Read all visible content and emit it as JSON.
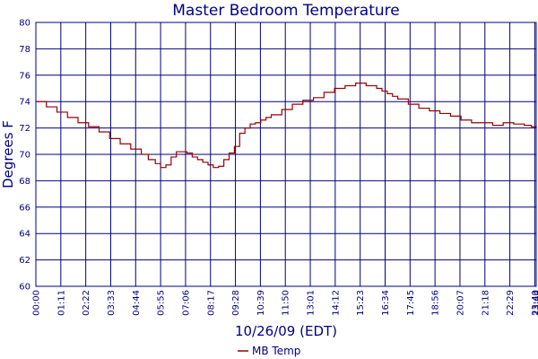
{
  "chart_data": {
    "type": "line",
    "title": "Master Bedroom Temperature",
    "xlabel": "10/26/09 (EDT)",
    "ylabel": "Degrees F",
    "ylim": [
      60,
      80
    ],
    "yticks": [
      "60",
      "62",
      "64",
      "66",
      "68",
      "70",
      "72",
      "74",
      "76",
      "78",
      "80"
    ],
    "xticks": [
      "00:00",
      "01:11",
      "02:22",
      "03:33",
      "04:44",
      "05:55",
      "07:06",
      "08:17",
      "09:28",
      "10:39",
      "11:50",
      "13:01",
      "14:12",
      "15:23",
      "16:34",
      "17:45",
      "18:56",
      "20:07",
      "21:18",
      "22:29",
      "23:40",
      "23:44"
    ],
    "grid": true,
    "legend_position": "bottom",
    "series": [
      {
        "name": "MB Temp",
        "color": "#990000",
        "x_minutes": [
          0,
          30,
          60,
          90,
          120,
          150,
          180,
          210,
          240,
          270,
          300,
          320,
          340,
          355,
          370,
          385,
          400,
          415,
          430,
          445,
          460,
          475,
          490,
          505,
          520,
          535,
          550,
          565,
          580,
          595,
          610,
          625,
          640,
          655,
          670,
          700,
          730,
          760,
          790,
          820,
          850,
          880,
          910,
          940,
          970,
          985,
          1000,
          1015,
          1030,
          1060,
          1090,
          1120,
          1150,
          1180,
          1210,
          1240,
          1270,
          1300,
          1330,
          1360,
          1390,
          1410,
          1424
        ],
        "values": [
          74.0,
          73.6,
          73.2,
          72.8,
          72.4,
          72.1,
          71.7,
          71.2,
          70.8,
          70.4,
          70.0,
          69.6,
          69.3,
          69.0,
          69.2,
          69.8,
          70.2,
          70.2,
          70.1,
          69.8,
          69.6,
          69.4,
          69.2,
          69.0,
          69.1,
          69.6,
          70.1,
          70.6,
          71.6,
          72.0,
          72.3,
          72.4,
          72.6,
          72.8,
          73.0,
          73.4,
          73.8,
          74.1,
          74.3,
          74.7,
          75.0,
          75.2,
          75.4,
          75.2,
          75.0,
          74.8,
          74.6,
          74.4,
          74.2,
          73.8,
          73.5,
          73.3,
          73.1,
          72.9,
          72.6,
          72.4,
          72.4,
          72.2,
          72.4,
          72.3,
          72.2,
          72.1,
          72.0
        ]
      }
    ]
  }
}
